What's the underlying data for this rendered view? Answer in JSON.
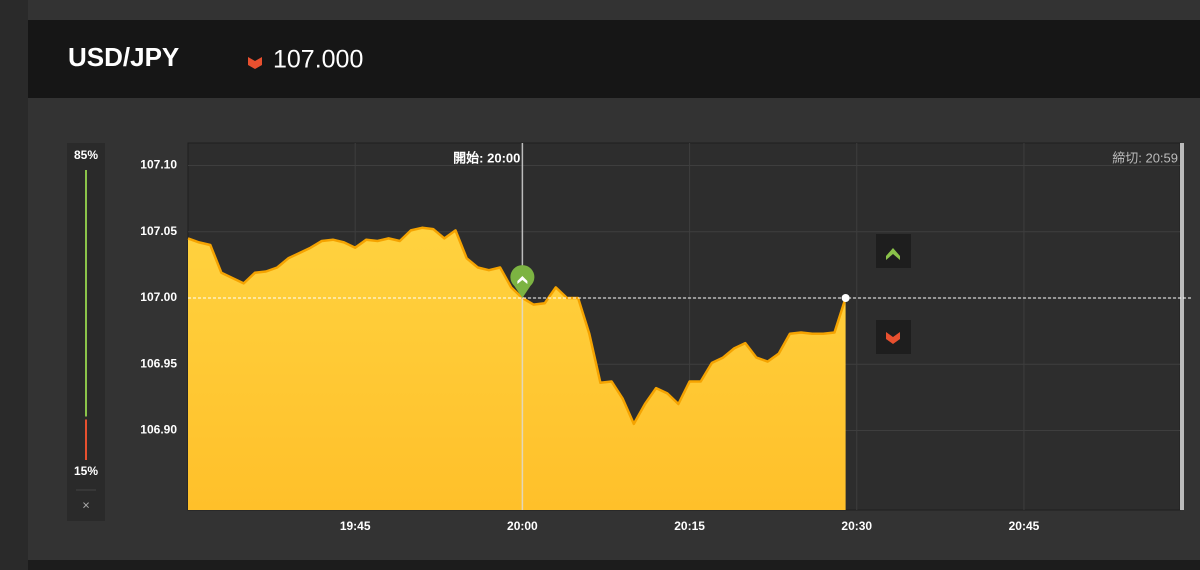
{
  "header": {
    "symbol": "USD/JPY",
    "price": "107.000"
  },
  "sentiment": {
    "up": {
      "value": 85,
      "label": "85%"
    },
    "down": {
      "value": 15,
      "label": "15%"
    },
    "close": "×"
  },
  "chart_data": {
    "type": "area",
    "start_label": "開始: 20:00",
    "end_label": "締切: 20:59",
    "x": [
      "19:30",
      "19:31",
      "19:32",
      "19:33",
      "19:34",
      "19:35",
      "19:36",
      "19:37",
      "19:38",
      "19:39",
      "19:40",
      "19:41",
      "19:42",
      "19:43",
      "19:44",
      "19:45",
      "19:46",
      "19:47",
      "19:48",
      "19:49",
      "19:50",
      "19:51",
      "19:52",
      "19:53",
      "19:54",
      "19:55",
      "19:56",
      "19:57",
      "19:58",
      "19:59",
      "20:00",
      "20:01",
      "20:02",
      "20:03",
      "20:04",
      "20:05",
      "20:06",
      "20:07",
      "20:08",
      "20:09",
      "20:10",
      "20:11",
      "20:12",
      "20:13",
      "20:14",
      "20:15",
      "20:16",
      "20:17",
      "20:18",
      "20:19",
      "20:20",
      "20:21",
      "20:22",
      "20:23",
      "20:24",
      "20:25",
      "20:26",
      "20:27",
      "20:28",
      "20:29"
    ],
    "values": [
      107.045,
      107.042,
      107.04,
      107.019,
      107.015,
      107.011,
      107.019,
      107.02,
      107.023,
      107.03,
      107.034,
      107.038,
      107.043,
      107.044,
      107.042,
      107.038,
      107.044,
      107.043,
      107.045,
      107.043,
      107.051,
      107.053,
      107.052,
      107.045,
      107.051,
      107.03,
      107.023,
      107.021,
      107.023,
      107.008,
      107.0,
      106.995,
      106.996,
      107.008,
      107.0,
      107.0,
      106.973,
      106.936,
      106.937,
      106.924,
      106.905,
      106.92,
      106.932,
      106.928,
      106.92,
      106.937,
      106.937,
      106.951,
      106.955,
      106.962,
      106.966,
      106.955,
      106.952,
      106.958,
      106.973,
      106.974,
      106.973,
      106.973,
      106.974,
      107.0
    ],
    "color": "#ffc83a",
    "xlim": [
      "19:30",
      "20:59"
    ],
    "xticks": [
      "19:45",
      "20:00",
      "20:15",
      "20:30",
      "20:45"
    ],
    "ylim": [
      106.84,
      107.117
    ],
    "yticks": [
      {
        "value": 107.1,
        "label": "107.10"
      },
      107.05,
      {
        "value": 107.0,
        "label": "107.00"
      },
      106.95,
      {
        "value": 106.9,
        "label": "106.90"
      }
    ],
    "grid": true
  }
}
